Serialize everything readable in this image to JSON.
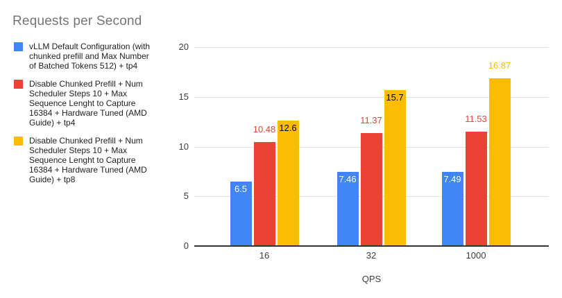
{
  "title": "Requests per Second",
  "legend": {
    "items": [
      {
        "label": "vLLM Default Configuration (with chunked prefill and Max Number of Batched Tokens 512) + tp4",
        "color": "#4285F4"
      },
      {
        "label": "Disable Chunked Prefill + Num Scheduler Steps 10 + Max Sequence Lenght to Capture 16384 + Hardware Tuned (AMD Guide) + tp4",
        "color": "#EA4335"
      },
      {
        "label": "Disable Chunked Prefill + Num Scheduler Steps 10 + Max Sequence Lenght to Capture 16384 + Hardware Tuned (AMD Guide) + tp8",
        "color": "#FBBC04"
      }
    ]
  },
  "chart_data": {
    "type": "bar",
    "title": "Requests per Second",
    "xlabel": "QPS",
    "ylabel": "",
    "categories": [
      "16",
      "32",
      "1000"
    ],
    "yticks": [
      0,
      5,
      10,
      15,
      20
    ],
    "ylim": [
      0,
      20
    ],
    "grid": true,
    "legend_position": "left",
    "series": [
      {
        "name": "vLLM Default Configuration (with chunked prefill and Max Number of Batched Tokens 512) + tp4",
        "color": "#4285F4",
        "values": [
          6.5,
          7.46,
          7.49
        ],
        "data_labels": [
          {
            "text": "6.5",
            "placement": "inside",
            "color": "#ffffff"
          },
          {
            "text": "7.46",
            "placement": "inside",
            "color": "#ffffff"
          },
          {
            "text": "7.49",
            "placement": "inside",
            "color": "#ffffff"
          }
        ]
      },
      {
        "name": "Disable Chunked Prefill + Num Scheduler Steps 10 + Max Sequence Lenght to Capture 16384 + Hardware Tuned (AMD Guide) + tp4",
        "color": "#EA4335",
        "values": [
          10.48,
          11.37,
          11.53
        ],
        "data_labels": [
          {
            "text": "10.48",
            "placement": "above",
            "color": "#EA4335"
          },
          {
            "text": "11.37",
            "placement": "above",
            "color": "#EA4335"
          },
          {
            "text": "11.53",
            "placement": "above",
            "color": "#EA4335"
          }
        ]
      },
      {
        "name": "Disable Chunked Prefill + Num Scheduler Steps 10 + Max Sequence Lenght to Capture 16384 + Hardware Tuned (AMD Guide) + tp8",
        "color": "#FBBC04",
        "values": [
          12.6,
          15.7,
          16.87
        ],
        "data_labels": [
          {
            "text": "12.6",
            "placement": "inside",
            "color": "#000000"
          },
          {
            "text": "15.7",
            "placement": "inside",
            "color": "#000000"
          },
          {
            "text": "16.87",
            "placement": "above",
            "color": "#FBBC04"
          }
        ]
      }
    ]
  }
}
